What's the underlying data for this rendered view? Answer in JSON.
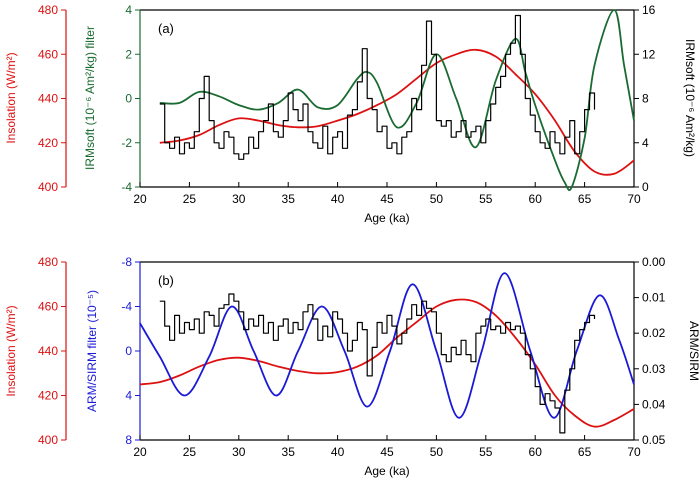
{
  "colors": {
    "insolation": "#dd1111",
    "irm_filter": "#1a6b32",
    "arm_filter": "#1a1ad6",
    "record": "#000000",
    "axis": "#000000"
  },
  "chart_data": [
    {
      "panel_label": "(a)",
      "type": "line",
      "xlabel": "Age (ka)",
      "xlim": [
        20,
        70
      ],
      "xticks": [
        "20",
        "25",
        "30",
        "35",
        "40",
        "45",
        "50",
        "55",
        "60",
        "65",
        "70"
      ],
      "axes": {
        "insolation": {
          "label": "Insolation (W/m²)",
          "lim": [
            400,
            480
          ],
          "ticks": [
            "400",
            "420",
            "440",
            "460",
            "480"
          ]
        },
        "filter": {
          "label": "IRMsoft (10⁻⁶ Am²/kg) filter",
          "lim": [
            -4,
            4
          ],
          "ticks": [
            "-4",
            "-2",
            "0",
            "2",
            "4"
          ]
        },
        "right": {
          "label": "IRMsoft (10⁻⁶ Am²/kg)",
          "lim": [
            0,
            16
          ],
          "ticks": [
            "0",
            "4",
            "8",
            "12",
            "16"
          ]
        }
      },
      "series": [
        {
          "axis": "insolation",
          "color_key": "insolation",
          "style": "line",
          "x": [
            22,
            24,
            26,
            28,
            30,
            32,
            34,
            36,
            38,
            40,
            42,
            44,
            46,
            48,
            50,
            52,
            54,
            56,
            58,
            60,
            62,
            64,
            66,
            68,
            70
          ],
          "values": [
            420,
            421,
            423.5,
            428,
            431,
            430,
            428,
            427,
            427.5,
            430,
            433,
            437,
            442,
            449,
            456,
            460,
            462,
            459,
            451,
            442,
            430,
            416,
            407,
            406,
            412
          ]
        },
        {
          "axis": "filter",
          "color_key": "irm_filter",
          "style": "line",
          "x": [
            22,
            24,
            26,
            28,
            30,
            32,
            34,
            36,
            38,
            40,
            42,
            43,
            44,
            46,
            48,
            50,
            52,
            54,
            56,
            58,
            59,
            60,
            62,
            63,
            63.7,
            65,
            66,
            68,
            69,
            70
          ],
          "values": [
            -0.2,
            -0.2,
            0.3,
            0.1,
            -0.3,
            -0.5,
            -0.2,
            0.4,
            -0.4,
            -0.3,
            0.9,
            1.2,
            0.7,
            -1.3,
            -0.2,
            2.0,
            0.0,
            -2.2,
            0.8,
            2.7,
            1.2,
            -0.3,
            -2.8,
            -3.8,
            -4.0,
            -1.8,
            1.5,
            4.0,
            1.5,
            -1.0
          ]
        },
        {
          "axis": "right",
          "color_key": "record",
          "style": "step",
          "x": [
            22,
            22.5,
            23,
            23.5,
            24,
            24.5,
            25,
            25.5,
            26,
            26.5,
            27,
            27.5,
            28,
            28.5,
            29,
            29.5,
            30,
            30.5,
            31,
            31.5,
            32,
            32.5,
            33,
            33.5,
            34,
            34.5,
            35,
            35.5,
            36,
            36.5,
            37,
            37.5,
            38,
            38.5,
            39,
            39.5,
            40,
            40.5,
            41,
            41.5,
            42,
            42.5,
            43,
            43.5,
            44,
            44.5,
            45,
            45.5,
            46,
            46.5,
            47,
            47.5,
            48,
            48.5,
            49,
            49.5,
            50,
            50.5,
            51,
            51.5,
            52,
            52.5,
            53,
            53.5,
            54,
            54.5,
            55,
            55.5,
            56,
            56.5,
            57,
            57.5,
            58,
            58.5,
            59,
            59.5,
            60,
            60.5,
            61,
            61.5,
            62,
            62.5,
            63,
            63.5,
            64,
            64.5,
            65,
            65.5,
            66
          ],
          "values": [
            7.5,
            4,
            3.5,
            4.5,
            3,
            4,
            3.5,
            5,
            8,
            10,
            6,
            4,
            3.5,
            5,
            4.5,
            3,
            2.5,
            3,
            4.5,
            3.5,
            5,
            6,
            7.5,
            5,
            4.5,
            6,
            8.5,
            7,
            6,
            7.5,
            5,
            4,
            3.5,
            5.5,
            3,
            4.5,
            5,
            3.5,
            6.5,
            7,
            9.5,
            12.5,
            8,
            7,
            5,
            5.5,
            3.5,
            4,
            3,
            4.5,
            5,
            8,
            7,
            11,
            15,
            12,
            6,
            5.5,
            6,
            4.5,
            5,
            6,
            4.5,
            5,
            5.5,
            4,
            6,
            7.5,
            9,
            10,
            12,
            13,
            15.5,
            12,
            8,
            6.5,
            5,
            4,
            3.5,
            5,
            4,
            3,
            4.5,
            6,
            3,
            5,
            7,
            8.5,
            7
          ]
        }
      ]
    },
    {
      "panel_label": "(b)",
      "type": "line",
      "xlabel": "Age (ka)",
      "xlim": [
        20,
        70
      ],
      "xticks": [
        "20",
        "25",
        "30",
        "35",
        "40",
        "45",
        "50",
        "55",
        "60",
        "65",
        "70"
      ],
      "axes": {
        "insolation": {
          "label": "Insolation (W/m²)",
          "lim": [
            400,
            480
          ],
          "ticks": [
            "400",
            "420",
            "440",
            "460",
            "480"
          ]
        },
        "filter": {
          "label": "ARM/SIRM filter (10⁻⁵)",
          "lim": [
            8,
            -8
          ],
          "ticks": [
            "-8",
            "-4",
            "0",
            "4",
            "8"
          ]
        },
        "right": {
          "label": "ARM/SIRM",
          "lim": [
            0.05,
            0.0
          ],
          "ticks": [
            "0.00",
            "0.01",
            "0.02",
            "0.03",
            "0.04",
            "0.05"
          ]
        }
      },
      "series": [
        {
          "axis": "insolation",
          "color_key": "insolation",
          "style": "line",
          "x": [
            20,
            22,
            24,
            26,
            28,
            30,
            32,
            34,
            36,
            38,
            40,
            42,
            44,
            46,
            48,
            50,
            52,
            54,
            56,
            58,
            60,
            62,
            64,
            66,
            68,
            70
          ],
          "values": [
            425,
            426,
            429,
            433,
            436,
            437,
            435.5,
            433,
            431,
            430,
            430.5,
            433,
            438,
            446,
            453,
            460,
            463,
            462,
            456,
            446,
            434,
            420,
            411,
            406,
            409,
            414
          ]
        },
        {
          "axis": "filter",
          "color_key": "arm_filter",
          "style": "line",
          "x": [
            20,
            22,
            24.5,
            27,
            29.3,
            31.5,
            33.8,
            36,
            38.4,
            40.7,
            43,
            45.3,
            47.6,
            50,
            52.3,
            54.6,
            56.9,
            59.5,
            61.9,
            64.2,
            66.5,
            68.5,
            70
          ],
          "values": [
            -2.5,
            0.5,
            4,
            0.5,
            -4,
            0,
            4,
            0,
            -4,
            0,
            5,
            0,
            -6,
            0,
            6,
            0,
            -7,
            0,
            6,
            0,
            -5,
            -1,
            3
          ]
        },
        {
          "axis": "right",
          "color_key": "record",
          "style": "step",
          "x": [
            22,
            22.5,
            23,
            23.5,
            24,
            24.5,
            25,
            25.5,
            26,
            26.5,
            27,
            27.5,
            28,
            28.5,
            29,
            29.5,
            30,
            30.5,
            31,
            31.5,
            32,
            32.5,
            33,
            33.5,
            34,
            34.5,
            35,
            35.5,
            36,
            36.5,
            37,
            37.5,
            38,
            38.5,
            39,
            39.5,
            40,
            40.5,
            41,
            41.5,
            42,
            42.5,
            43,
            43.5,
            44,
            44.5,
            45,
            45.5,
            46,
            46.5,
            47,
            47.5,
            48,
            48.5,
            49,
            49.5,
            50,
            50.5,
            51,
            51.5,
            52,
            52.5,
            53,
            53.5,
            54,
            54.5,
            55,
            55.5,
            56,
            56.5,
            57,
            57.5,
            58,
            58.5,
            59,
            59.5,
            60,
            60.5,
            61,
            61.5,
            62,
            62.5,
            63,
            63.5,
            64,
            64.5,
            65,
            65.5,
            66
          ],
          "values": [
            0.011,
            0.018,
            0.022,
            0.015,
            0.02,
            0.017,
            0.019,
            0.016,
            0.02,
            0.014,
            0.015,
            0.018,
            0.013,
            0.012,
            0.009,
            0.011,
            0.014,
            0.019,
            0.016,
            0.018,
            0.015,
            0.02,
            0.017,
            0.022,
            0.018,
            0.016,
            0.02,
            0.017,
            0.019,
            0.014,
            0.012,
            0.016,
            0.022,
            0.018,
            0.021,
            0.014,
            0.016,
            0.02,
            0.025,
            0.022,
            0.017,
            0.019,
            0.032,
            0.024,
            0.017,
            0.02,
            0.015,
            0.018,
            0.023,
            0.02,
            0.016,
            0.012,
            0.015,
            0.011,
            0.013,
            0.014,
            0.02,
            0.026,
            0.028,
            0.024,
            0.026,
            0.022,
            0.026,
            0.028,
            0.02,
            0.018,
            0.016,
            0.019,
            0.018,
            0.02,
            0.017,
            0.019,
            0.018,
            0.02,
            0.026,
            0.03,
            0.035,
            0.04,
            0.037,
            0.039,
            0.041,
            0.048,
            0.036,
            0.03,
            0.022,
            0.019,
            0.017,
            0.015,
            0.016
          ]
        }
      ]
    }
  ]
}
